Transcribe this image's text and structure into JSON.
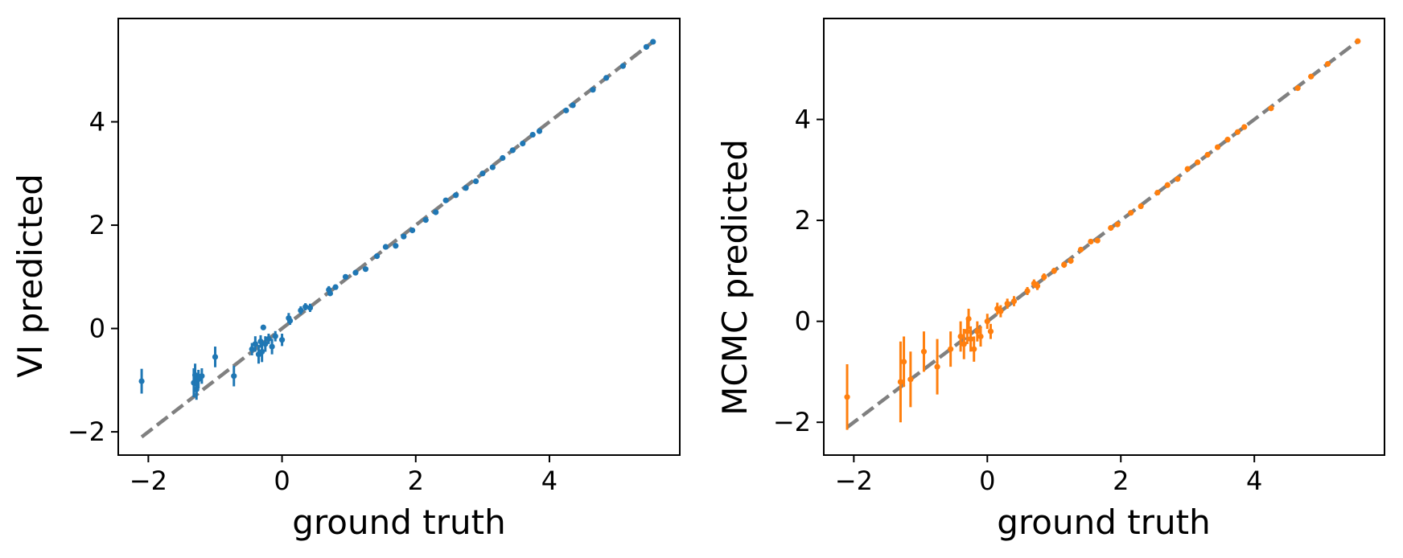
{
  "chart_data": [
    {
      "type": "scatter",
      "title": "",
      "xlabel": "ground truth",
      "ylabel": "VI predicted",
      "xlim": [
        -2.45,
        5.95
      ],
      "ylim": [
        -2.45,
        6.0
      ],
      "xticks": [
        -2,
        0,
        2,
        4
      ],
      "yticks": [
        -2,
        0,
        2,
        4
      ],
      "xticklabels": [
        "−2",
        "0",
        "2",
        "4"
      ],
      "yticklabels": [
        "−2",
        "0",
        "2",
        "4"
      ],
      "grid": false,
      "identity_line": {
        "from": -2.1,
        "to": 5.55,
        "color": "#808080",
        "style": "dashed"
      },
      "series": [
        {
          "color": "#1f77b4",
          "points": [
            {
              "x": -2.1,
              "y": -1.02,
              "err": 0.24
            },
            {
              "x": -1.32,
              "y": -1.05,
              "err": 0.28
            },
            {
              "x": -1.3,
              "y": -0.9,
              "err": 0.22
            },
            {
              "x": -1.28,
              "y": -1.18,
              "err": 0.2
            },
            {
              "x": -1.25,
              "y": -0.98,
              "err": 0.18
            },
            {
              "x": -1.2,
              "y": -0.92,
              "err": 0.15
            },
            {
              "x": -1.0,
              "y": -0.55,
              "err": 0.2
            },
            {
              "x": -0.72,
              "y": -0.92,
              "err": 0.2
            },
            {
              "x": -0.45,
              "y": -0.4,
              "err": 0.12
            },
            {
              "x": -0.4,
              "y": -0.3,
              "err": 0.15
            },
            {
              "x": -0.35,
              "y": -0.5,
              "err": 0.18
            },
            {
              "x": -0.32,
              "y": -0.25,
              "err": 0.12
            },
            {
              "x": -0.3,
              "y": -0.45,
              "err": 0.2
            },
            {
              "x": -0.28,
              "y": 0.02,
              "err": 0.05
            },
            {
              "x": -0.25,
              "y": -0.3,
              "err": 0.15
            },
            {
              "x": -0.2,
              "y": -0.2,
              "err": 0.1
            },
            {
              "x": -0.15,
              "y": -0.35,
              "err": 0.15
            },
            {
              "x": -0.1,
              "y": -0.15,
              "err": 0.1
            },
            {
              "x": 0.0,
              "y": -0.22,
              "err": 0.12
            },
            {
              "x": 0.1,
              "y": 0.2,
              "err": 0.1
            },
            {
              "x": 0.12,
              "y": 0.15,
              "err": 0.08
            },
            {
              "x": 0.28,
              "y": 0.35,
              "err": 0.08
            },
            {
              "x": 0.35,
              "y": 0.42,
              "err": 0.07
            },
            {
              "x": 0.42,
              "y": 0.4,
              "err": 0.08
            },
            {
              "x": 0.7,
              "y": 0.75,
              "err": 0.07
            },
            {
              "x": 0.72,
              "y": 0.68,
              "err": 0.05
            },
            {
              "x": 0.8,
              "y": 0.8,
              "err": 0.05
            },
            {
              "x": 0.95,
              "y": 1.0,
              "err": 0.05
            },
            {
              "x": 1.1,
              "y": 1.08,
              "err": 0.04
            },
            {
              "x": 1.25,
              "y": 1.15,
              "err": 0.04
            },
            {
              "x": 1.42,
              "y": 1.4,
              "err": 0.04
            },
            {
              "x": 1.55,
              "y": 1.58,
              "err": 0.04
            },
            {
              "x": 1.7,
              "y": 1.6,
              "err": 0.04
            },
            {
              "x": 1.82,
              "y": 1.78,
              "err": 0.03
            },
            {
              "x": 1.95,
              "y": 1.9,
              "err": 0.03
            },
            {
              "x": 2.15,
              "y": 2.1,
              "err": 0.03
            },
            {
              "x": 2.3,
              "y": 2.25,
              "err": 0.03
            },
            {
              "x": 2.45,
              "y": 2.48,
              "err": 0.03
            },
            {
              "x": 2.6,
              "y": 2.58,
              "err": 0.03
            },
            {
              "x": 2.75,
              "y": 2.72,
              "err": 0.03
            },
            {
              "x": 2.9,
              "y": 2.85,
              "err": 0.03
            },
            {
              "x": 3.0,
              "y": 3.0,
              "err": 0.03
            },
            {
              "x": 3.15,
              "y": 3.12,
              "err": 0.03
            },
            {
              "x": 3.3,
              "y": 3.3,
              "err": 0.03
            },
            {
              "x": 3.45,
              "y": 3.45,
              "err": 0.03
            },
            {
              "x": 3.6,
              "y": 3.58,
              "err": 0.03
            },
            {
              "x": 3.75,
              "y": 3.75,
              "err": 0.03
            },
            {
              "x": 3.85,
              "y": 3.82,
              "err": 0.03
            },
            {
              "x": 4.25,
              "y": 4.22,
              "err": 0.03
            },
            {
              "x": 4.35,
              "y": 4.32,
              "err": 0.03
            },
            {
              "x": 4.65,
              "y": 4.62,
              "err": 0.03
            },
            {
              "x": 4.85,
              "y": 4.85,
              "err": 0.03
            },
            {
              "x": 5.1,
              "y": 5.08,
              "err": 0.03
            },
            {
              "x": 5.45,
              "y": 5.45,
              "err": 0.03
            },
            {
              "x": 5.55,
              "y": 5.55,
              "err": 0.03
            }
          ]
        }
      ]
    },
    {
      "type": "scatter",
      "title": "",
      "xlabel": "ground truth",
      "ylabel": "MCMC predicted",
      "xlim": [
        -2.45,
        5.95
      ],
      "ylim": [
        -2.65,
        6.0
      ],
      "xticks": [
        -2,
        0,
        2,
        4
      ],
      "yticks": [
        -2,
        0,
        2,
        4
      ],
      "xticklabels": [
        "−2",
        "0",
        "2",
        "4"
      ],
      "yticklabels": [
        "−2",
        "0",
        "2",
        "4"
      ],
      "grid": false,
      "identity_line": {
        "from": -2.1,
        "to": 5.55,
        "color": "#808080",
        "style": "dashed"
      },
      "series": [
        {
          "color": "#ff7f0e",
          "points": [
            {
              "x": -2.1,
              "y": -1.5,
              "err": 0.65
            },
            {
              "x": -1.3,
              "y": -1.2,
              "err": 0.8
            },
            {
              "x": -1.25,
              "y": -0.8,
              "err": 0.5
            },
            {
              "x": -1.15,
              "y": -1.15,
              "err": 0.55
            },
            {
              "x": -0.95,
              "y": -0.6,
              "err": 0.4
            },
            {
              "x": -0.75,
              "y": -0.9,
              "err": 0.55
            },
            {
              "x": -0.55,
              "y": -0.55,
              "err": 0.35
            },
            {
              "x": -0.4,
              "y": -0.3,
              "err": 0.3
            },
            {
              "x": -0.35,
              "y": -0.45,
              "err": 0.3
            },
            {
              "x": -0.3,
              "y": -0.2,
              "err": 0.25
            },
            {
              "x": -0.28,
              "y": 0.05,
              "err": 0.2
            },
            {
              "x": -0.25,
              "y": -0.35,
              "err": 0.25
            },
            {
              "x": -0.2,
              "y": -0.55,
              "err": 0.25
            },
            {
              "x": -0.15,
              "y": -0.2,
              "err": 0.2
            },
            {
              "x": -0.1,
              "y": -0.3,
              "err": 0.2
            },
            {
              "x": 0.0,
              "y": 0.0,
              "err": 0.15
            },
            {
              "x": 0.05,
              "y": -0.2,
              "err": 0.15
            },
            {
              "x": 0.15,
              "y": 0.25,
              "err": 0.12
            },
            {
              "x": 0.2,
              "y": 0.2,
              "err": 0.12
            },
            {
              "x": 0.3,
              "y": 0.35,
              "err": 0.1
            },
            {
              "x": 0.4,
              "y": 0.4,
              "err": 0.1
            },
            {
              "x": 0.6,
              "y": 0.6,
              "err": 0.08
            },
            {
              "x": 0.7,
              "y": 0.75,
              "err": 0.08
            },
            {
              "x": 0.75,
              "y": 0.7,
              "err": 0.08
            },
            {
              "x": 0.85,
              "y": 0.88,
              "err": 0.07
            },
            {
              "x": 1.0,
              "y": 1.0,
              "err": 0.06
            },
            {
              "x": 1.15,
              "y": 1.12,
              "err": 0.06
            },
            {
              "x": 1.25,
              "y": 1.2,
              "err": 0.06
            },
            {
              "x": 1.4,
              "y": 1.42,
              "err": 0.05
            },
            {
              "x": 1.55,
              "y": 1.58,
              "err": 0.05
            },
            {
              "x": 1.65,
              "y": 1.6,
              "err": 0.05
            },
            {
              "x": 1.85,
              "y": 1.85,
              "err": 0.04
            },
            {
              "x": 1.95,
              "y": 1.92,
              "err": 0.04
            },
            {
              "x": 2.15,
              "y": 2.15,
              "err": 0.04
            },
            {
              "x": 2.3,
              "y": 2.28,
              "err": 0.04
            },
            {
              "x": 2.55,
              "y": 2.55,
              "err": 0.04
            },
            {
              "x": 2.7,
              "y": 2.7,
              "err": 0.04
            },
            {
              "x": 2.85,
              "y": 2.82,
              "err": 0.04
            },
            {
              "x": 3.0,
              "y": 3.02,
              "err": 0.04
            },
            {
              "x": 3.15,
              "y": 3.15,
              "err": 0.04
            },
            {
              "x": 3.3,
              "y": 3.3,
              "err": 0.04
            },
            {
              "x": 3.45,
              "y": 3.45,
              "err": 0.04
            },
            {
              "x": 3.6,
              "y": 3.6,
              "err": 0.04
            },
            {
              "x": 3.75,
              "y": 3.75,
              "err": 0.04
            },
            {
              "x": 3.85,
              "y": 3.85,
              "err": 0.04
            },
            {
              "x": 4.25,
              "y": 4.22,
              "err": 0.04
            },
            {
              "x": 4.65,
              "y": 4.62,
              "err": 0.04
            },
            {
              "x": 4.85,
              "y": 4.85,
              "err": 0.04
            },
            {
              "x": 5.1,
              "y": 5.1,
              "err": 0.04
            },
            {
              "x": 5.55,
              "y": 5.55,
              "err": 0.04
            }
          ]
        }
      ]
    }
  ]
}
